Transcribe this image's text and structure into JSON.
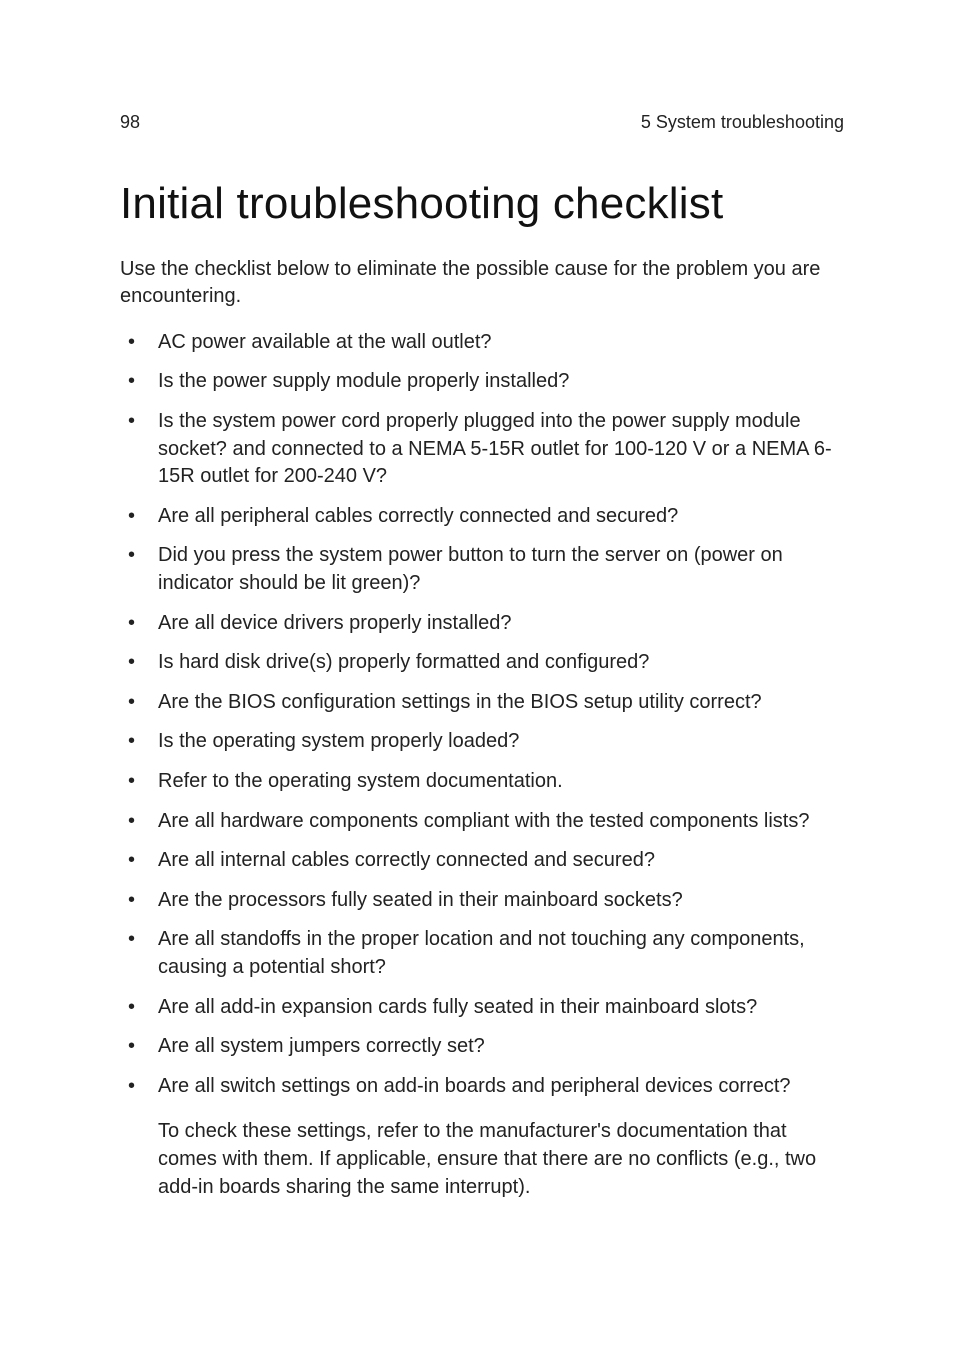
{
  "header": {
    "page_number": "98",
    "section_label": "5 System troubleshooting"
  },
  "title": "Initial troubleshooting checklist",
  "intro": "Use the checklist below to eliminate the possible cause for the problem you are encountering.",
  "checklist": [
    "AC power available at the wall outlet?",
    "Is the power supply module properly installed?",
    "Is the system power cord properly plugged into the power supply module socket? and connected to a NEMA 5-15R outlet for 100-120 V or a NEMA 6-15R outlet for 200-240 V?",
    "Are all peripheral cables correctly connected and secured?",
    "Did you press the system power button to turn the server on (power on indicator should be lit green)?",
    "Are all device drivers properly installed?",
    "Is hard disk drive(s) properly formatted and configured?",
    "Are the BIOS configuration settings in the BIOS setup utility correct?",
    "Is the operating system properly loaded?",
    "Refer to the operating system documentation.",
    "Are all hardware components compliant with the tested components lists?",
    "Are all internal cables correctly connected and secured?",
    "Are the processors fully seated in their mainboard sockets?",
    "Are all standoffs in the proper location and not touching any components, causing a potential short?",
    "Are all add-in expansion cards fully seated in their mainboard slots?",
    "Are all system jumpers correctly set?",
    "Are all switch settings on add-in boards and peripheral devices correct?"
  ],
  "sub_paragraph": "To check these settings, refer to the manufacturer's documentation that comes with them. If applicable, ensure that there are no conflicts (e.g., two add-in boards sharing the same interrupt)."
}
